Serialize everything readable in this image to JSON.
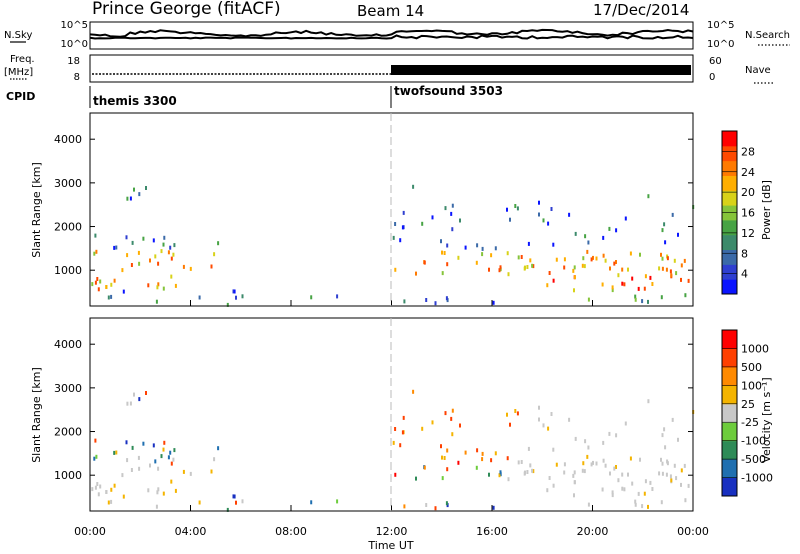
{
  "header": {
    "station": "Prince George (fitACF)",
    "beam": "Beam 14",
    "date": "17/Dec/2014"
  },
  "strips": {
    "nsky_label": "N.Sky",
    "nsky_ticks": [
      "10^5",
      "10^0"
    ],
    "nsearch_label": "N.Search",
    "nsearch_ticks": [
      "10^5",
      "10^0"
    ],
    "freq_label": "Freq.",
    "freq_unit": "[MHz]",
    "freq_ticks": [
      "18",
      "8"
    ],
    "nave_label": "Nave",
    "nave_ticks": [
      "60",
      "0"
    ],
    "cpid_label": "CPID",
    "cpid_segments": [
      "themis 3300",
      "twofsound 3503"
    ]
  },
  "chart_data": [
    {
      "type": "heatmap",
      "ylabel": "Slant Range [km]",
      "ylim": [
        180,
        4600
      ],
      "yticks": [
        1000,
        2000,
        3000,
        4000
      ],
      "ytick_labels": [
        "1000",
        "2000",
        "3000",
        "4000"
      ],
      "xlim": [
        0,
        24
      ],
      "xticks": [
        0,
        4,
        8,
        12,
        16,
        20,
        24
      ],
      "colorbar": {
        "label": "Power [dB]",
        "ticks": [
          "28",
          "24",
          "20",
          "16",
          "12",
          "8",
          "4"
        ],
        "colors": [
          "#0a14ff",
          "#2f3fd0",
          "#3b6aa8",
          "#3c8a6b",
          "#47a344",
          "#86c43a",
          "#d8d219",
          "#ffae00",
          "#ff7a00",
          "#ff4a00",
          "#ff0000"
        ]
      }
    },
    {
      "type": "heatmap",
      "ylabel": "Slant Range [km]",
      "ylim": [
        180,
        4600
      ],
      "yticks": [
        1000,
        2000,
        3000,
        4000
      ],
      "ytick_labels": [
        "1000",
        "2000",
        "3000",
        "4000"
      ],
      "xlim": [
        0,
        24
      ],
      "xticks": [
        0,
        4,
        8,
        12,
        16,
        20,
        24
      ],
      "xtick_labels": [
        "00:00",
        "04:00",
        "08:00",
        "12:00",
        "16:00",
        "20:00",
        "00:00"
      ],
      "xlabel": "Time UT",
      "colorbar": {
        "label": "Velocity [m s⁻¹]",
        "ticks": [
          "1000",
          "500",
          "100",
          "25",
          "-25",
          "-100",
          "-500",
          "-1000"
        ],
        "colors": [
          "#1830c0",
          "#1f6fb0",
          "#2e8b57",
          "#6dcc3c",
          "#c8c8c8",
          "#f4b400",
          "#ff8a00",
          "#ff4000",
          "#ff0000"
        ]
      }
    }
  ]
}
